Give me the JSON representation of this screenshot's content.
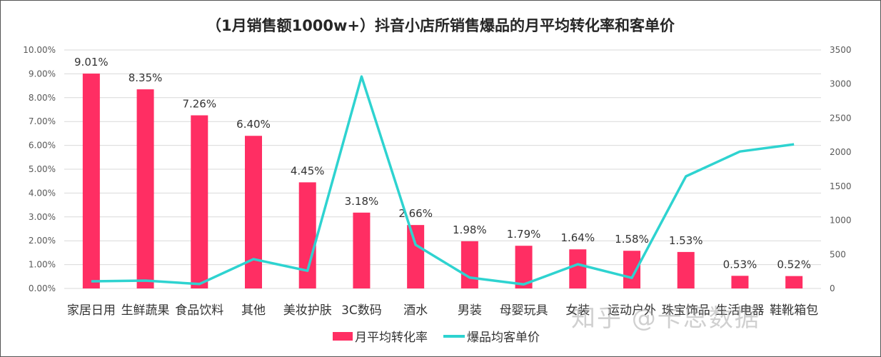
{
  "title": "（1月销售额1000w+）抖音小店所销售爆品的月平均转化率和客单价",
  "watermark": "知乎 @卡思数据",
  "colors": {
    "bar": "#FF2E63",
    "line": "#2ED3D0",
    "grid": "#D9D9D9",
    "axis_text": "#595959"
  },
  "legend": {
    "bar_label": "月平均转化率",
    "line_label": "爆品均客单价"
  },
  "chart_data": {
    "type": "bar",
    "title": "（1月销售额1000w+）抖音小店所销售爆品的月平均转化率和客单价",
    "categories": [
      "家居日用",
      "生鲜蔬果",
      "食品饮料",
      "其他",
      "美妆护肤",
      "3C数码",
      "酒水",
      "男装",
      "母婴玩具",
      "女装",
      "运动户外",
      "珠宝饰品",
      "生活电器",
      "鞋靴箱包"
    ],
    "series": [
      {
        "name": "月平均转化率",
        "type": "bar",
        "axis": "left",
        "values": [
          9.01,
          8.35,
          7.26,
          6.4,
          4.45,
          3.18,
          2.66,
          1.98,
          1.79,
          1.64,
          1.58,
          1.53,
          0.53,
          0.52
        ],
        "labels": [
          "9.01%",
          "8.35%",
          "7.26%",
          "6.40%",
          "4.45%",
          "3.18%",
          "2.66%",
          "1.98%",
          "1.79%",
          "1.64%",
          "1.58%",
          "1.53%",
          "0.53%",
          "0.52%"
        ]
      },
      {
        "name": "爆品均客单价",
        "type": "line",
        "axis": "right",
        "values": [
          105,
          115,
          65,
          430,
          260,
          3110,
          640,
          160,
          60,
          355,
          155,
          1645,
          2010,
          2115
        ]
      }
    ],
    "y_left": {
      "ylim": [
        0,
        10
      ],
      "ticks": [
        "0.00%",
        "1.00%",
        "2.00%",
        "3.00%",
        "4.00%",
        "5.00%",
        "6.00%",
        "7.00%",
        "8.00%",
        "9.00%",
        "10.00%"
      ]
    },
    "y_right": {
      "ylim": [
        0,
        3500
      ],
      "ticks": [
        "0",
        "500",
        "1000",
        "1500",
        "2000",
        "2500",
        "3000",
        "3500"
      ]
    },
    "xlabel": "",
    "ylabel": "",
    "grid": true,
    "legend_position": "bottom"
  }
}
